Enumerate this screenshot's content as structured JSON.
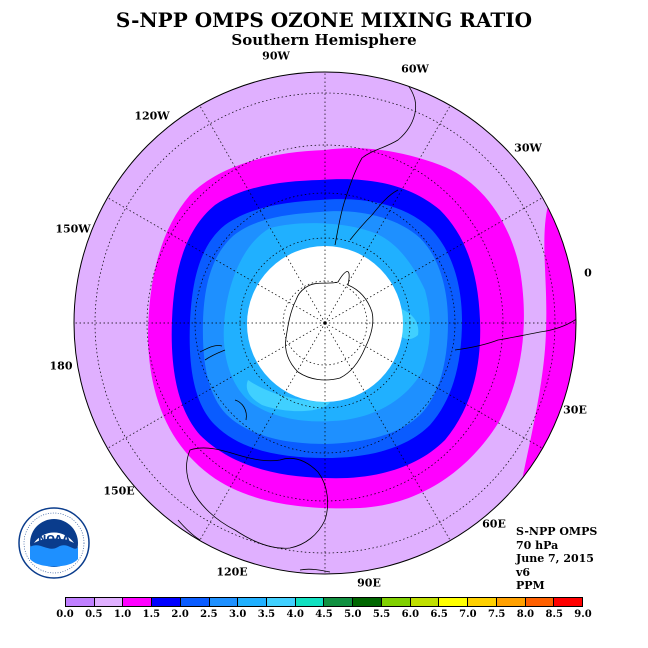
{
  "header": {
    "title": "S-NPP OMPS OZONE MIXING RATIO",
    "subtitle": "Southern Hemisphere"
  },
  "longitude_labels": {
    "lon_0": "0",
    "lon_30E": "30E",
    "lon_60E": "60E",
    "lon_90E": "90E",
    "lon_120E": "120E",
    "lon_150E": "150E",
    "lon_180": "180",
    "lon_150W": "150W",
    "lon_120W": "120W",
    "lon_90W": "90W",
    "lon_60W": "60W",
    "lon_30W": "30W"
  },
  "info": {
    "instrument": "S-NPP OMPS",
    "level": "70 hPa",
    "date": "June 7, 2015",
    "version": "v6",
    "units": "PPM"
  },
  "logo": {
    "text": "NOAA",
    "ring_text": "NATIONAL OCEANIC AND ATMOSPHERIC ADMINISTRATION · U.S. DEPARTMENT OF COMMERCE"
  },
  "colorbar": {
    "ticks": [
      "0.0",
      "0.5",
      "1.0",
      "1.5",
      "2.0",
      "2.5",
      "3.0",
      "3.5",
      "4.0",
      "4.5",
      "5.0",
      "5.5",
      "6.0",
      "6.5",
      "7.0",
      "7.5",
      "8.0",
      "8.5",
      "9.0"
    ],
    "colors": [
      "#c080ff",
      "#e0b0ff",
      "#ff00ff",
      "#0000ff",
      "#0a5cff",
      "#1e90ff",
      "#20b0ff",
      "#40d0ff",
      "#10e0c0",
      "#109040",
      "#006600",
      "#80d000",
      "#c0e000",
      "#ffff00",
      "#ffd000",
      "#ffa000",
      "#ff6000",
      "#ff0000",
      "#a05a30"
    ]
  },
  "map_colors": {
    "outer": "#e0b0ff",
    "band_10_15": "#ff00ff",
    "band_15_20": "#0000ff",
    "band_20_25": "#0a5cff",
    "band_25_30": "#1e90ff",
    "band_30_35": "#20b0ff",
    "band_35_40": "#40d0ff",
    "nodata": "#ffffff"
  }
}
